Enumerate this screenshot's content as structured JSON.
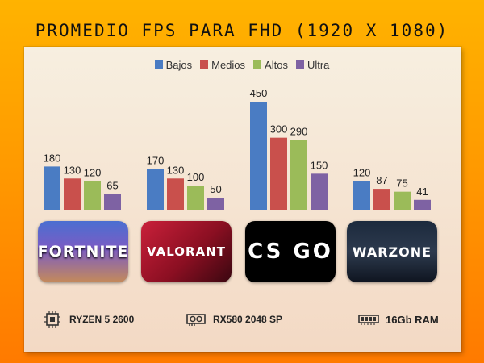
{
  "title": "PROMEDIO FPS PARA FHD (1920 X 1080)",
  "chart_data": {
    "type": "bar",
    "categories": [
      "FORTNITE",
      "VALORANT",
      "CS:GO",
      "WARZONE"
    ],
    "series": [
      {
        "name": "Bajos",
        "color": "#4a7cc3",
        "values": [
          180,
          170,
          450,
          120
        ]
      },
      {
        "name": "Medios",
        "color": "#c9504c",
        "values": [
          130,
          130,
          300,
          87
        ]
      },
      {
        "name": "Altos",
        "color": "#9bbb59",
        "values": [
          120,
          100,
          290,
          75
        ]
      },
      {
        "name": "Ultra",
        "color": "#7e62a3",
        "values": [
          65,
          50,
          150,
          41
        ]
      }
    ],
    "ylim": [
      0,
      450
    ],
    "grid": false,
    "legend_position": "top-center"
  },
  "logos": [
    {
      "text": "FORTNITE",
      "icon": "fortnite-logo"
    },
    {
      "text": "VALORANT",
      "icon": "valorant-logo"
    },
    {
      "text": "CS GO",
      "icon": "csgo-logo"
    },
    {
      "text": "WARZONE",
      "icon": "warzone-logo"
    }
  ],
  "specs": {
    "cpu": {
      "label": "RYZEN 5 2600",
      "icon": "cpu-chip-icon"
    },
    "gpu": {
      "label": "RX580 2048 SP",
      "icon": "graphics-card-icon"
    },
    "ram": {
      "label": "16Gb RAM",
      "icon": "ram-stick-icon"
    }
  }
}
